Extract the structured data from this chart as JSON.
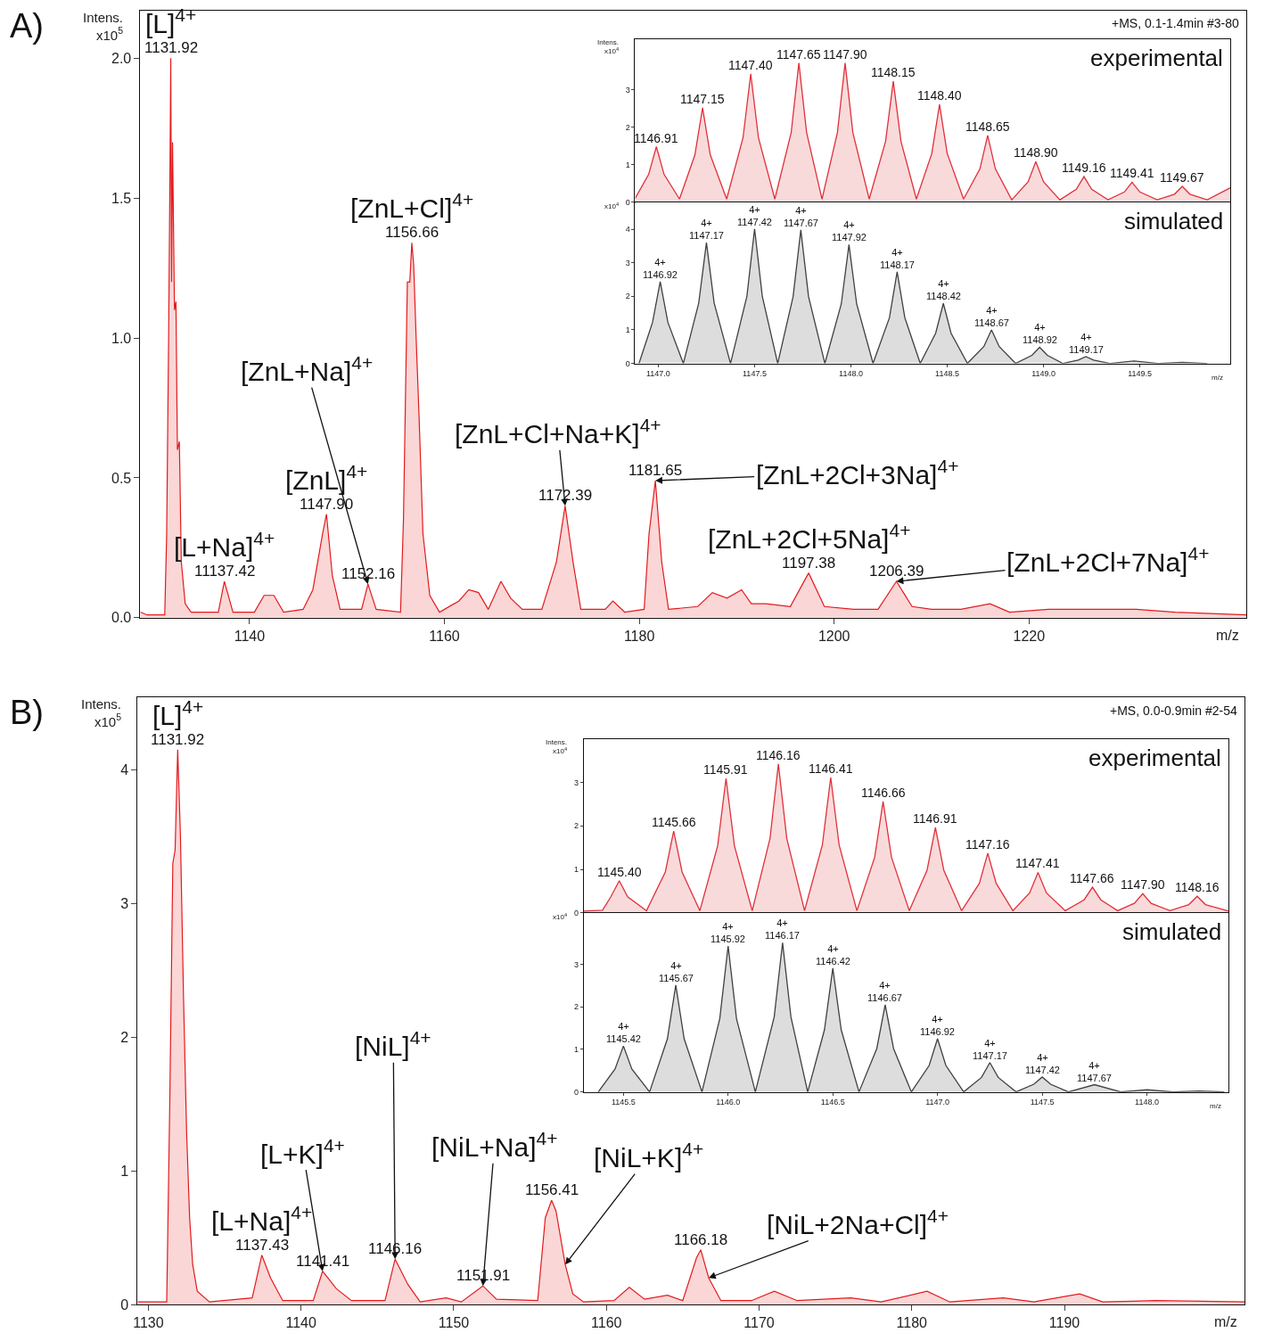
{
  "chart_data": [
    {
      "type": "area",
      "title": "A)",
      "xlabel": "m/z",
      "ylabel": "Intens.\nx10$^{5}$",
      "color": "#e31a1c",
      "x": [
        1128.8,
        1129.5,
        1131.3,
        1131.5,
        1131.7,
        1131.85,
        1131.92,
        1132.0,
        1132.1,
        1132.3,
        1132.45,
        1132.6,
        1132.8,
        1133.0,
        1133.4,
        1134,
        1136.8,
        1137.42,
        1138.3,
        1140.5,
        1141.5,
        1142.5,
        1143.5,
        1145.5,
        1146.5,
        1147.5,
        1147.9,
        1148.5,
        1149.3,
        1151.5,
        1152.16,
        1153,
        1155.5,
        1155.8,
        1156.2,
        1156.45,
        1156.66,
        1156.85,
        1157.1,
        1157.4,
        1157.8,
        1158.5,
        1159.5,
        1161.5,
        1162.5,
        1163.5,
        1164.5,
        1165.8,
        1166.8,
        1168,
        1170,
        1171.5,
        1172.39,
        1173.2,
        1174,
        1176.5,
        1177.3,
        1178.5,
        1180.5,
        1181.0,
        1181.65,
        1182.3,
        1183,
        1186,
        1187.5,
        1189,
        1190.5,
        1191.5,
        1193,
        1195.5,
        1197.38,
        1199,
        1202,
        1204.5,
        1206.39,
        1208,
        1210,
        1213,
        1216,
        1218,
        1222,
        1226,
        1231,
        1235,
        1242.3
      ],
      "values": [
        0.02,
        0.01,
        0.01,
        0.3,
        1.0,
        1.65,
        2.0,
        1.2,
        1.7,
        1.1,
        1.13,
        0.6,
        0.63,
        0.2,
        0.05,
        0.02,
        0.02,
        0.13,
        0.02,
        0.02,
        0.08,
        0.08,
        0.02,
        0.03,
        0.1,
        0.3,
        0.37,
        0.15,
        0.03,
        0.03,
        0.12,
        0.03,
        0.02,
        0.35,
        1.2,
        1.2,
        1.34,
        1.26,
        1.0,
        0.72,
        0.3,
        0.08,
        0.02,
        0.06,
        0.1,
        0.09,
        0.03,
        0.13,
        0.07,
        0.03,
        0.03,
        0.2,
        0.4,
        0.2,
        0.03,
        0.03,
        0.06,
        0.02,
        0.03,
        0.3,
        0.49,
        0.2,
        0.03,
        0.04,
        0.09,
        0.07,
        0.1,
        0.05,
        0.05,
        0.04,
        0.16,
        0.04,
        0.03,
        0.03,
        0.13,
        0.04,
        0.03,
        0.03,
        0.05,
        0.02,
        0.03,
        0.03,
        0.03,
        0.02,
        0.01
      ],
      "xlim": [
        1128.8,
        1242.3
      ],
      "ylim": [
        0,
        2.17
      ],
      "xticks": [
        1140,
        1160,
        1180,
        1200,
        1220
      ],
      "yticks": [
        {
          "value": 0,
          "label": "0.0"
        },
        {
          "value": 0.5,
          "label": "0.5"
        },
        {
          "value": 1,
          "label": "1.0"
        },
        {
          "value": 1.5,
          "label": "1.5"
        },
        {
          "value": 2,
          "label": "2.0"
        }
      ],
      "annotations": [
        {
          "text": "1131.92",
          "x": 1131.92,
          "y": 2.0
        },
        {
          "text": "11137.42",
          "x": 1137.42,
          "y": 0.13
        },
        {
          "text": "1147.90",
          "x": 1147.9,
          "y": 0.37
        },
        {
          "text": "1152.16",
          "x": 1152.16,
          "y": 0.12
        },
        {
          "text": "1156.66",
          "x": 1156.66,
          "y": 1.34
        },
        {
          "text": "1172.39",
          "x": 1172.39,
          "y": 0.4
        },
        {
          "text": "1181.65",
          "x": 1181.65,
          "y": 0.49
        },
        {
          "text": "1197.38",
          "x": 1197.38,
          "y": 0.16
        },
        {
          "text": "1206.39",
          "x": 1206.39,
          "y": 0.13
        },
        {
          "text": "[L]$^{4+}$",
          "x": 1131.92,
          "y": 2.0
        },
        {
          "text": "[L+Na]$^{4+}$",
          "x": 1137.42,
          "y": 0.13
        },
        {
          "text": "[ZnL]$^{4+}$",
          "x": 1147.9,
          "y": 0.37
        },
        {
          "text": "[ZnL+Na]$^{4+}$",
          "x": 1152.16,
          "y": 0.12
        },
        {
          "text": "[ZnL+Cl]$^{4+}$",
          "x": 1156.66,
          "y": 1.34
        },
        {
          "text": "[ZnL+Cl+Na+K]$^{4+}$",
          "x": 1172.39,
          "y": 0.4
        },
        {
          "text": "[ZnL+2Cl+3Na]$^{4+}$",
          "x": 1181.65,
          "y": 0.49
        },
        {
          "text": "[ZnL+2Cl+5Na]$^{4+}$",
          "x": 1197.38,
          "y": 0.16
        },
        {
          "text": "[ZnL+2Cl+7Na]$^{4+}$",
          "x": 1206.39,
          "y": 0.13
        },
        "+MS, 0.1-1.4min #3-80"
      ]
    },
    {
      "type": "area",
      "ylabel": "Intens.\nx10$^{4}$",
      "color": "#e0303a",
      "x": [
        1146.88,
        1146.95,
        1146.99,
        1147.03,
        1147.11,
        1147.19,
        1147.23,
        1147.27,
        1147.355,
        1147.44,
        1147.48,
        1147.52,
        1147.605,
        1147.69,
        1147.73,
        1147.77,
        1147.85,
        1147.93,
        1147.97,
        1148.01,
        1148.095,
        1148.18,
        1148.22,
        1148.26,
        1148.34,
        1148.42,
        1148.46,
        1148.5,
        1148.585,
        1148.67,
        1148.71,
        1148.75,
        1148.835,
        1148.92,
        1148.96,
        1149.0,
        1149.085,
        1149.17,
        1149.21,
        1149.25,
        1149.335,
        1149.42,
        1149.46,
        1149.5,
        1149.59,
        1149.68,
        1149.72,
        1149.76,
        1149.85,
        1149.97
      ],
      "values": [
        0.1,
        0.74,
        1.48,
        0.74,
        0.08,
        1.26,
        2.52,
        1.26,
        0.08,
        1.72,
        3.43,
        1.72,
        0.08,
        1.86,
        3.72,
        1.86,
        0.08,
        1.86,
        3.72,
        1.86,
        0.08,
        1.62,
        3.23,
        1.62,
        0.08,
        1.3,
        2.61,
        1.3,
        0.08,
        0.89,
        1.78,
        0.89,
        0.06,
        0.54,
        1.08,
        0.54,
        0.06,
        0.34,
        0.68,
        0.34,
        0.06,
        0.27,
        0.53,
        0.27,
        0.06,
        0.21,
        0.42,
        0.21,
        0.06,
        0.38
      ],
      "xlim": [
        1146.88,
        1149.97
      ],
      "ylim": [
        0,
        4.36
      ],
      "tick_labels": "y",
      "xticks": [
        {
          "value": 1147.0,
          "label": null
        },
        {
          "value": 1147.5,
          "label": null
        },
        {
          "value": 1148.0,
          "label": null
        },
        {
          "value": 1148.5,
          "label": null
        },
        {
          "value": 1149.0,
          "label": null
        },
        {
          "value": 1149.5,
          "label": null
        }
      ],
      "yticks": [
        0,
        1,
        2,
        3
      ],
      "annotations": [
        {
          "text": "1146.91",
          "x": 1146.99,
          "y": 1.48
        },
        {
          "text": "1147.15",
          "x": 1147.23,
          "y": 2.52
        },
        {
          "text": "1147.40",
          "x": 1147.48,
          "y": 3.43
        },
        {
          "text": "1147.65",
          "x": 1147.73,
          "y": 3.72
        },
        {
          "text": "1147.90",
          "x": 1147.97,
          "y": 3.72
        },
        {
          "text": "1148.15",
          "x": 1148.22,
          "y": 3.23
        },
        {
          "text": "1148.40",
          "x": 1148.46,
          "y": 2.61
        },
        {
          "text": "1148.65",
          "x": 1148.71,
          "y": 1.78
        },
        {
          "text": "1148.90",
          "x": 1148.96,
          "y": 1.08
        },
        {
          "text": "1149.16",
          "x": 1149.21,
          "y": 0.68
        },
        {
          "text": "1149.41",
          "x": 1149.46,
          "y": 0.53
        },
        {
          "text": "1149.67",
          "x": 1149.72,
          "y": 0.42
        },
        "experimental"
      ]
    },
    {
      "type": "area",
      "xlabel": "m/z",
      "ylabel": "x10$^{4}$",
      "color": "#404040",
      "x": [
        1146.9,
        1146.97,
        1147.01,
        1147.05,
        1147.13,
        1147.21,
        1147.25,
        1147.29,
        1147.375,
        1147.46,
        1147.5,
        1147.54,
        1147.62,
        1147.7,
        1147.74,
        1147.78,
        1147.865,
        1147.95,
        1147.99,
        1148.03,
        1148.115,
        1148.2,
        1148.24,
        1148.28,
        1148.36,
        1148.44,
        1148.48,
        1148.52,
        1148.605,
        1148.69,
        1148.73,
        1148.77,
        1148.855,
        1148.94,
        1148.98,
        1149.02,
        1149.1,
        1149.18,
        1149.22,
        1149.26,
        1149.345,
        1149.47,
        1149.595,
        1149.72,
        1149.85
      ],
      "values": [
        0,
        1.22,
        2.44,
        1.22,
        0,
        1.8,
        3.6,
        1.8,
        0,
        2.0,
        4.01,
        2.0,
        0,
        1.99,
        3.98,
        1.99,
        0,
        1.77,
        3.54,
        1.77,
        0,
        1.36,
        2.73,
        1.36,
        0,
        0.9,
        1.79,
        0.9,
        0,
        0.5,
        1.0,
        0.5,
        0,
        0.24,
        0.48,
        0.24,
        0,
        0.1,
        0.2,
        0.1,
        0,
        0.07,
        0,
        0.03,
        0
      ],
      "xlim": [
        1146.88,
        1149.97
      ],
      "ylim": [
        0,
        4.81
      ],
      "xticks": [
        {
          "value": 1147.0,
          "label": "1147.0"
        },
        {
          "value": 1147.5,
          "label": "1147.5"
        },
        {
          "value": 1148.0,
          "label": "1148.0"
        },
        {
          "value": 1148.5,
          "label": "1148.5"
        },
        {
          "value": 1149.0,
          "label": "1149.0"
        },
        {
          "value": 1149.5,
          "label": "1149.5"
        }
      ],
      "yticks": [
        0,
        1,
        2,
        3,
        4
      ],
      "annotations": [
        {
          "text": "4+\n1146.92",
          "x": 1147.01,
          "y": 2.44
        },
        {
          "text": "4+\n1147.17",
          "x": 1147.25,
          "y": 3.6
        },
        {
          "text": "4+\n1147.42",
          "x": 1147.5,
          "y": 4.01
        },
        {
          "text": "4+\n1147.67",
          "x": 1147.74,
          "y": 3.98
        },
        {
          "text": "4+\n1147.92",
          "x": 1147.99,
          "y": 3.54
        },
        {
          "text": "4+\n1148.17",
          "x": 1148.24,
          "y": 2.73
        },
        {
          "text": "4+\n1148.42",
          "x": 1148.48,
          "y": 1.79
        },
        {
          "text": "4+\n1148.67",
          "x": 1148.73,
          "y": 1.0
        },
        {
          "text": "4+\n1148.92",
          "x": 1148.98,
          "y": 0.48
        },
        {
          "text": "4+\n1149.17",
          "x": 1149.22,
          "y": 0.2
        },
        "simulated"
      ]
    },
    {
      "type": "area",
      "title": "B)",
      "xlabel": "m/z",
      "ylabel": "Intens.\nx10$^{5}$",
      "color": "#e31a1c",
      "x": [
        1129.3,
        1131.2,
        1131.4,
        1131.6,
        1131.75,
        1131.92,
        1132.1,
        1132.3,
        1132.5,
        1132.7,
        1132.9,
        1133.2,
        1134,
        1136.8,
        1137.43,
        1138,
        1138.8,
        1140.8,
        1141.41,
        1142.3,
        1143.3,
        1145.5,
        1146.16,
        1147,
        1147.8,
        1149.5,
        1150.5,
        1151.91,
        1152.8,
        1155.5,
        1156.0,
        1156.41,
        1156.7,
        1157.0,
        1157.3,
        1157.8,
        1158.5,
        1160.5,
        1161.5,
        1162.5,
        1164,
        1165,
        1165.9,
        1166.18,
        1166.7,
        1167.5,
        1169.5,
        1171,
        1172.5,
        1176,
        1178,
        1181,
        1182.5,
        1186,
        1188,
        1191,
        1192.5,
        1196,
        1201.8
      ],
      "values": [
        0.02,
        0.02,
        1.5,
        3.3,
        3.4,
        4.15,
        3.5,
        2.3,
        1.3,
        0.65,
        0.3,
        0.1,
        0.02,
        0.05,
        0.37,
        0.2,
        0.03,
        0.03,
        0.25,
        0.12,
        0.03,
        0.03,
        0.34,
        0.15,
        0.02,
        0.05,
        0.02,
        0.14,
        0.04,
        0.03,
        0.65,
        0.78,
        0.7,
        0.5,
        0.3,
        0.08,
        0.02,
        0.03,
        0.13,
        0.04,
        0.07,
        0.03,
        0.35,
        0.41,
        0.2,
        0.03,
        0.03,
        0.1,
        0.03,
        0.05,
        0.02,
        0.1,
        0.02,
        0.05,
        0.02,
        0.08,
        0.02,
        0.03,
        0.02
      ],
      "xlim": [
        1129.3,
        1201.8
      ],
      "ylim": [
        0,
        4.54
      ],
      "xticks": [
        1130,
        1140,
        1150,
        1160,
        1170,
        1180,
        1190
      ],
      "yticks": [
        0,
        1,
        2,
        3,
        4
      ],
      "annotations": [
        {
          "text": "1131.92",
          "x": 1131.92,
          "y": 4.15
        },
        {
          "text": "1137.43",
          "x": 1137.43,
          "y": 0.37
        },
        {
          "text": "1141.41",
          "x": 1141.41,
          "y": 0.25
        },
        {
          "text": "1146.16",
          "x": 1146.16,
          "y": 0.34
        },
        {
          "text": "1151.91",
          "x": 1151.91,
          "y": 0.14
        },
        {
          "text": "1156.41",
          "x": 1156.41,
          "y": 0.78
        },
        {
          "text": "1166.18",
          "x": 1166.18,
          "y": 0.41
        },
        {
          "text": "[L]$^{4+}$",
          "x": 1131.92,
          "y": 4.15
        },
        {
          "text": "[L+Na]$^{4+}$",
          "x": 1137.43,
          "y": 0.37
        },
        {
          "text": "[L+K]$^{4+}$",
          "x": 1141.41,
          "y": 0.25
        },
        {
          "text": "[NiL]$^{4+}$",
          "x": 1146.16,
          "y": 0.34
        },
        {
          "text": "[NiL+Na]$^{4+}$",
          "x": 1151.91,
          "y": 0.14
        },
        {
          "text": "[NiL+K]$^{4+}$",
          "x": 1157.3,
          "y": 0.3
        },
        {
          "text": "[NiL+2Na+Cl]$^{4+}$",
          "x": 1166.7,
          "y": 0.2
        },
        "+MS, 0.0-0.9min #2-54"
      ]
    },
    {
      "type": "area",
      "ylabel": "Intens.\nx10$^{4}$",
      "color": "#e0303a",
      "x": [
        1145.31,
        1145.4,
        1145.44,
        1145.48,
        1145.52,
        1145.61,
        1145.7,
        1145.74,
        1145.78,
        1145.865,
        1145.95,
        1145.99,
        1146.03,
        1146.115,
        1146.2,
        1146.24,
        1146.28,
        1146.365,
        1146.45,
        1146.49,
        1146.53,
        1146.615,
        1146.7,
        1146.74,
        1146.78,
        1146.865,
        1146.95,
        1146.99,
        1147.03,
        1147.115,
        1147.2,
        1147.24,
        1147.28,
        1147.36,
        1147.44,
        1147.48,
        1147.52,
        1147.61,
        1147.7,
        1147.74,
        1147.78,
        1147.86,
        1147.94,
        1147.98,
        1148.02,
        1148.11,
        1148.2,
        1148.24,
        1148.28,
        1148.39
      ],
      "values": [
        0.04,
        0.06,
        0.37,
        0.74,
        0.37,
        0.05,
        0.94,
        1.88,
        0.94,
        0.05,
        1.54,
        3.09,
        1.54,
        0.05,
        1.71,
        3.42,
        1.71,
        0.05,
        1.56,
        3.11,
        1.56,
        0.05,
        1.28,
        2.56,
        1.28,
        0.05,
        0.98,
        1.96,
        0.98,
        0.05,
        0.68,
        1.37,
        0.68,
        0.05,
        0.46,
        0.93,
        0.46,
        0.05,
        0.3,
        0.59,
        0.3,
        0.05,
        0.22,
        0.44,
        0.22,
        0.05,
        0.19,
        0.38,
        0.19,
        0.04
      ],
      "xlim": [
        1145.31,
        1148.39
      ],
      "ylim": [
        0,
        3.99
      ],
      "tick_labels": "y",
      "xticks": [
        {
          "value": 1145.5,
          "label": null
        },
        {
          "value": 1146.0,
          "label": null
        },
        {
          "value": 1146.5,
          "label": null
        },
        {
          "value": 1147.0,
          "label": null
        },
        {
          "value": 1147.5,
          "label": null
        },
        {
          "value": 1148.0,
          "label": null
        }
      ],
      "yticks": [
        0,
        1,
        2,
        3
      ],
      "annotations": [
        {
          "text": "1145.40",
          "x": 1145.48,
          "y": 0.74
        },
        {
          "text": "1145.66",
          "x": 1145.74,
          "y": 1.88
        },
        {
          "text": "1145.91",
          "x": 1145.99,
          "y": 3.09
        },
        {
          "text": "1146.16",
          "x": 1146.24,
          "y": 3.42
        },
        {
          "text": "1146.41",
          "x": 1146.49,
          "y": 3.11
        },
        {
          "text": "1146.66",
          "x": 1146.74,
          "y": 2.56
        },
        {
          "text": "1146.91",
          "x": 1146.99,
          "y": 1.96
        },
        {
          "text": "1147.16",
          "x": 1147.24,
          "y": 1.37
        },
        {
          "text": "1147.41",
          "x": 1147.48,
          "y": 0.93
        },
        {
          "text": "1147.66",
          "x": 1147.74,
          "y": 0.59
        },
        {
          "text": "1147.90",
          "x": 1147.98,
          "y": 0.44
        },
        {
          "text": "1148.16",
          "x": 1148.24,
          "y": 0.38
        },
        "experimental"
      ]
    },
    {
      "type": "area",
      "xlabel": "m/z",
      "ylabel": "x10$^{4}$",
      "color": "#404040",
      "x": [
        1145.38,
        1145.46,
        1145.5,
        1145.54,
        1145.625,
        1145.71,
        1145.75,
        1145.79,
        1145.875,
        1145.96,
        1146.0,
        1146.04,
        1146.13,
        1146.22,
        1146.26,
        1146.3,
        1146.38,
        1146.46,
        1146.5,
        1146.54,
        1146.625,
        1146.71,
        1146.75,
        1146.79,
        1146.875,
        1146.96,
        1147.0,
        1147.04,
        1147.125,
        1147.21,
        1147.25,
        1147.29,
        1147.375,
        1147.46,
        1147.5,
        1147.54,
        1147.625,
        1147.75,
        1147.875,
        1148.0,
        1148.125,
        1148.25,
        1148.37
      ],
      "values": [
        0,
        0.54,
        1.08,
        0.54,
        0,
        1.25,
        2.51,
        1.25,
        0,
        1.72,
        3.43,
        1.72,
        0,
        1.76,
        3.51,
        1.76,
        0,
        1.46,
        2.91,
        1.46,
        0,
        1.02,
        2.05,
        1.02,
        0,
        0.62,
        1.25,
        0.62,
        0,
        0.34,
        0.69,
        0.34,
        0,
        0.18,
        0.35,
        0.18,
        0,
        0.17,
        0,
        0.05,
        0,
        0.02,
        0
      ],
      "xlim": [
        1145.31,
        1148.39
      ],
      "ylim": [
        0,
        4.21
      ],
      "xticks": [
        {
          "value": 1145.5,
          "label": "1145.5"
        },
        {
          "value": 1146.0,
          "label": "1146.0"
        },
        {
          "value": 1146.5,
          "label": "1146.5"
        },
        {
          "value": 1147.0,
          "label": "1147.0"
        },
        {
          "value": 1147.5,
          "label": "1147.5"
        },
        {
          "value": 1148.0,
          "label": "1148.0"
        }
      ],
      "yticks": [
        0,
        1,
        2,
        3
      ],
      "annotations": [
        {
          "text": "4+\n1145.42",
          "x": 1145.5,
          "y": 1.08
        },
        {
          "text": "4+\n1145.67",
          "x": 1145.75,
          "y": 2.51
        },
        {
          "text": "4+\n1145.92",
          "x": 1146.0,
          "y": 3.43
        },
        {
          "text": "4+\n1146.17",
          "x": 1146.26,
          "y": 3.51
        },
        {
          "text": "4+\n1146.42",
          "x": 1146.5,
          "y": 2.91
        },
        {
          "text": "4+\n1146.67",
          "x": 1146.75,
          "y": 2.05
        },
        {
          "text": "4+\n1146.92",
          "x": 1147.0,
          "y": 1.25
        },
        {
          "text": "4+\n1147.17",
          "x": 1147.25,
          "y": 0.69
        },
        {
          "text": "4+\n1147.42",
          "x": 1147.5,
          "y": 0.35
        },
        {
          "text": "4+\n1147.67",
          "x": 1147.75,
          "y": 0.17
        },
        "simulated"
      ]
    }
  ]
}
